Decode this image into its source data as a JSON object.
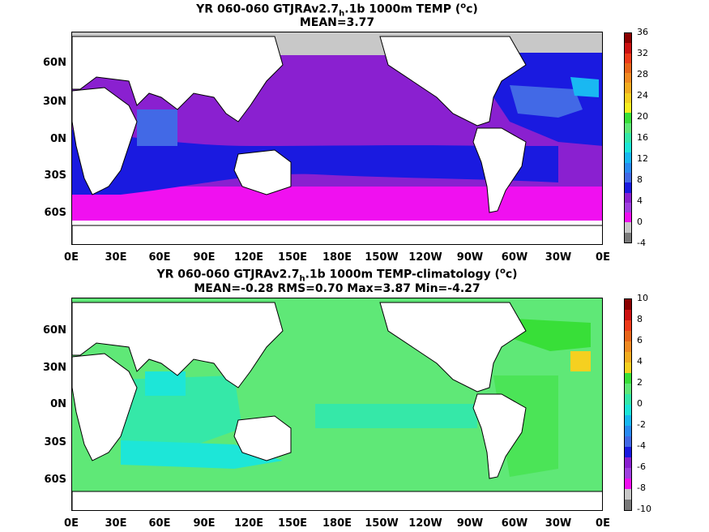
{
  "top": {
    "title_pre": "YR 060-060 GTJRAv2.7",
    "title_sub": "h",
    "title_post": ".1b 1000m TEMP (",
    "title_sup": "o",
    "title_end": "c)",
    "subtitle": "MEAN=3.77",
    "lat_labels": [
      "60N",
      "30N",
      "0N",
      "30S",
      "60S"
    ],
    "lon_labels": [
      "0E",
      "30E",
      "60E",
      "90E",
      "120E",
      "150E",
      "180E",
      "150W",
      "120W",
      "90W",
      "60W",
      "30W",
      "0E"
    ],
    "colorbar_labels": [
      "36",
      "32",
      "28",
      "24",
      "20",
      "16",
      "12",
      "8",
      "4",
      "0",
      "-4"
    ],
    "colorbar_colors": [
      "#8b0000",
      "#cc1111",
      "#ee3a1a",
      "#e8651a",
      "#f08a22",
      "#f2ac20",
      "#f5d020",
      "#f7ee20",
      "#38df38",
      "#5fe877",
      "#35e8a8",
      "#1de6d8",
      "#19b8f2",
      "#2a8bf2",
      "#4269e6",
      "#1a1ae0",
      "#8a20d0",
      "#a040e0",
      "#f010f0",
      "#c8c8c8",
      "#7a7a7a"
    ]
  },
  "bottom": {
    "title_pre": "YR 060-060 GTJRAv2.7",
    "title_sub": "h",
    "title_post": ".1b 1000m TEMP-climatology (",
    "title_sup": "o",
    "title_end": "c)",
    "subtitle": "MEAN=-0.28   RMS=0.70   Max=3.87   Min=-4.27",
    "lat_labels": [
      "60N",
      "30N",
      "0N",
      "30S",
      "60S"
    ],
    "lon_labels": [
      "0E",
      "30E",
      "60E",
      "90E",
      "120E",
      "150E",
      "180E",
      "150W",
      "120W",
      "90W",
      "60W",
      "30W",
      "0E"
    ],
    "colorbar_labels": [
      "10",
      "8",
      "6",
      "4",
      "2",
      "0",
      "-2",
      "-4",
      "-6",
      "-8",
      "-10"
    ],
    "colorbar_colors": [
      "#8b0000",
      "#cc1111",
      "#ee3a1a",
      "#e8651a",
      "#f08a22",
      "#f2ac20",
      "#f5d020",
      "#38df38",
      "#5fe877",
      "#35e8a8",
      "#1de6d8",
      "#19b8f2",
      "#2a8bf2",
      "#4269e6",
      "#1a1ae0",
      "#8a20d0",
      "#a040e0",
      "#f010f0",
      "#c8c8c8",
      "#7a7a7a"
    ]
  }
}
